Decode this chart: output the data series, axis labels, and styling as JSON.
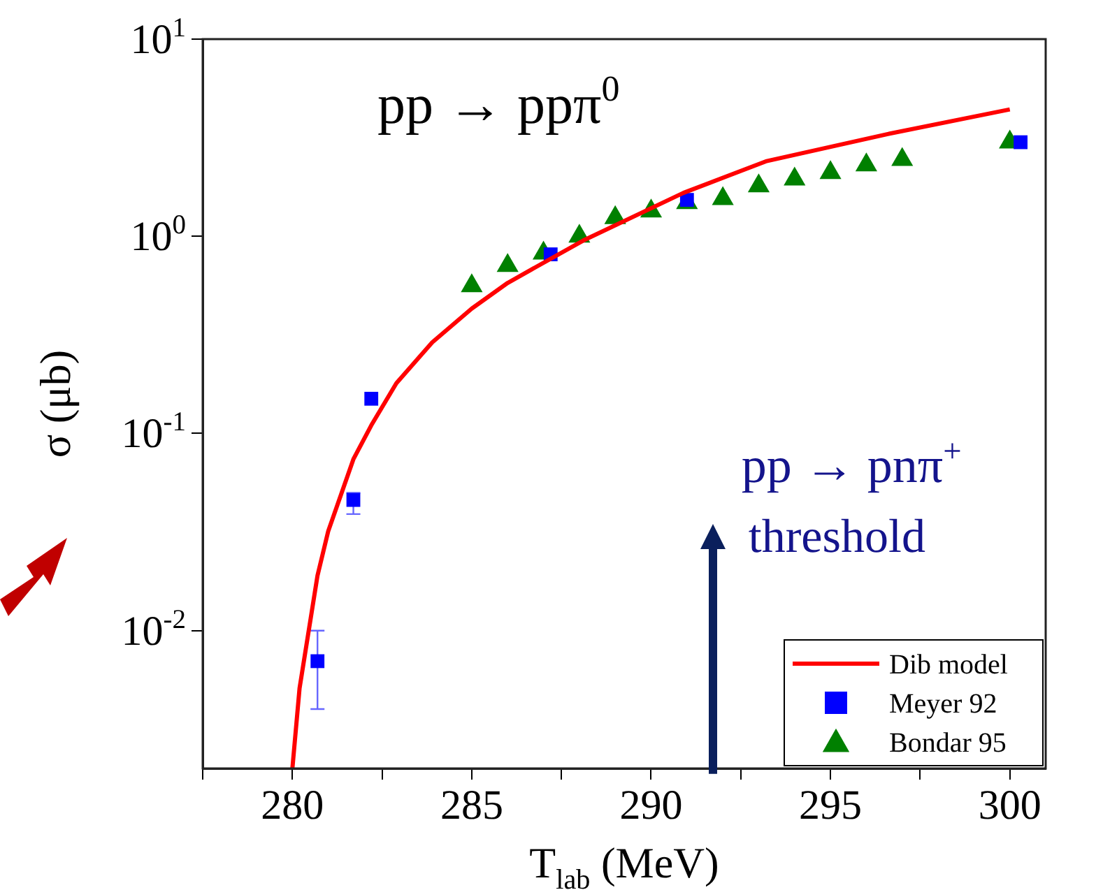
{
  "chart_data": {
    "type": "scatter",
    "title": "pp → ppπ$^{0}$",
    "xlabel": "T$_{lab}$ (MeV)",
    "ylabel": "σ (μb)",
    "log": "y",
    "grid": false,
    "legend": "bottom right",
    "xlim": [
      277.5,
      301
    ],
    "xticks": [
      {
        "value": 277.5,
        "label": null
      },
      280,
      {
        "value": 282.5,
        "label": null
      },
      285,
      {
        "value": 287.5,
        "label": null
      },
      290,
      {
        "value": 292.5,
        "label": null
      },
      295,
      {
        "value": 297.5,
        "label": null
      },
      300
    ],
    "ylim": [
      0.002,
      10
    ],
    "yticks": [
      {
        "value": 0.01,
        "label": "10$^{-2}$"
      },
      {
        "value": 0.1,
        "label": "10$^{-1}$"
      },
      {
        "value": 1,
        "label": "10$^{0}$"
      },
      {
        "value": 10,
        "label": "10$^{1}$"
      }
    ],
    "series": [
      {
        "name": "Dib model",
        "type": "line",
        "color": "#ff0000",
        "marker": "none",
        "x": [
          280,
          280.2,
          280.7,
          281,
          281.7,
          282.2,
          282.9,
          283.9,
          285,
          286,
          288.1,
          290.9,
          293.2,
          296.6,
          300
        ],
        "values": [
          0.002,
          0.0051,
          0.019,
          0.032,
          0.074,
          0.11,
          0.18,
          0.29,
          0.43,
          0.58,
          0.95,
          1.66,
          2.4,
          3.3,
          4.4
        ]
      },
      {
        "name": "Meyer 92",
        "color": "#0000ff",
        "marker": "square",
        "x": [
          280.7,
          281.7,
          282.2,
          287.2,
          291,
          300.3
        ],
        "values": [
          0.007,
          0.046,
          0.15,
          0.81,
          1.53,
          3.0
        ],
        "errors": [
          [
            0.004,
            0.01
          ],
          [
            0.039,
            0.05
          ],
          null,
          null,
          null,
          null
        ]
      },
      {
        "name": "Bondar 95",
        "color": "#008000",
        "marker": "triangle",
        "x": [
          285,
          286,
          287,
          288,
          289,
          290,
          291,
          292,
          293,
          294,
          295,
          296,
          297,
          300
        ],
        "values": [
          0.56,
          0.71,
          0.82,
          1.0,
          1.24,
          1.34,
          1.48,
          1.55,
          1.8,
          1.95,
          2.1,
          2.3,
          2.45,
          3.0
        ]
      }
    ],
    "annotations": [
      "pp → pnπ$^{+}$",
      "threshold"
    ]
  }
}
